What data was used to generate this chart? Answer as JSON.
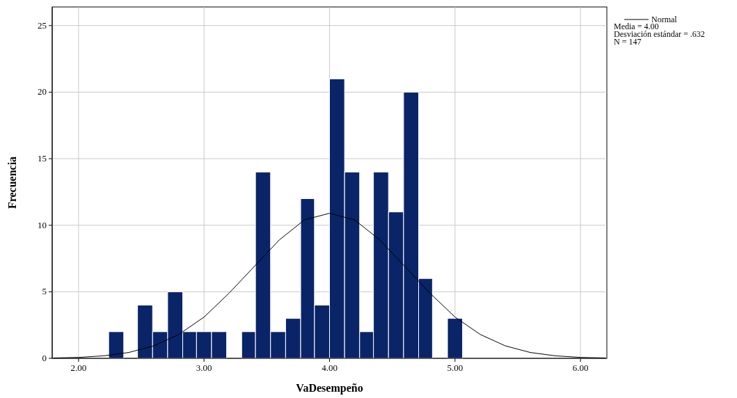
{
  "chart_data": {
    "type": "histogram",
    "xlabel": "VaDesempeño",
    "ylabel": "Frecuencia",
    "bins": [
      2.24,
      2.36,
      2.47,
      2.59,
      2.71,
      2.83,
      2.94,
      3.06,
      3.18,
      3.3,
      3.41,
      3.53,
      3.65,
      3.77,
      3.88,
      4.0,
      4.12,
      4.24,
      4.35,
      4.47,
      4.59,
      4.71,
      4.82,
      4.94,
      5.06
    ],
    "values": [
      2,
      0,
      4,
      2,
      5,
      2,
      2,
      2,
      0,
      2,
      14,
      2,
      3,
      12,
      4,
      21,
      14,
      2,
      14,
      11,
      20,
      6,
      0,
      3
    ],
    "color": "#0a2468",
    "series": [
      {
        "type": "line",
        "name": "Normal",
        "color": "#000000",
        "x": [
          1.8,
          2.0,
          2.2,
          2.4,
          2.6,
          2.8,
          3.0,
          3.2,
          3.4,
          3.6,
          3.8,
          4.0,
          4.2,
          4.4,
          4.6,
          4.8,
          5.0,
          5.2,
          5.4,
          5.6,
          5.8,
          6.0,
          6.2
        ],
        "values": [
          0.03,
          0.07,
          0.19,
          0.44,
          0.94,
          1.8,
          3.1,
          4.9,
          6.9,
          8.9,
          10.4,
          10.9,
          10.4,
          8.9,
          6.9,
          4.9,
          3.1,
          1.8,
          0.94,
          0.44,
          0.19,
          0.07,
          0.03
        ]
      }
    ],
    "xlim": [
      1.79,
      6.21
    ],
    "ylim": [
      0,
      26.4
    ],
    "xticks": [
      {
        "value": 2,
        "label": "2.00"
      },
      {
        "value": 3,
        "label": "3.00"
      },
      {
        "value": 4,
        "label": "4.00"
      },
      {
        "value": 5,
        "label": "5.00"
      },
      {
        "value": 6,
        "label": "6.00"
      }
    ],
    "yticks": [
      0,
      5,
      10,
      15,
      20,
      25
    ],
    "grid": true,
    "legend": "top right",
    "annotations": [
      "Media = 4.00",
      "Desviación estándar = .632",
      "N = 147"
    ]
  }
}
